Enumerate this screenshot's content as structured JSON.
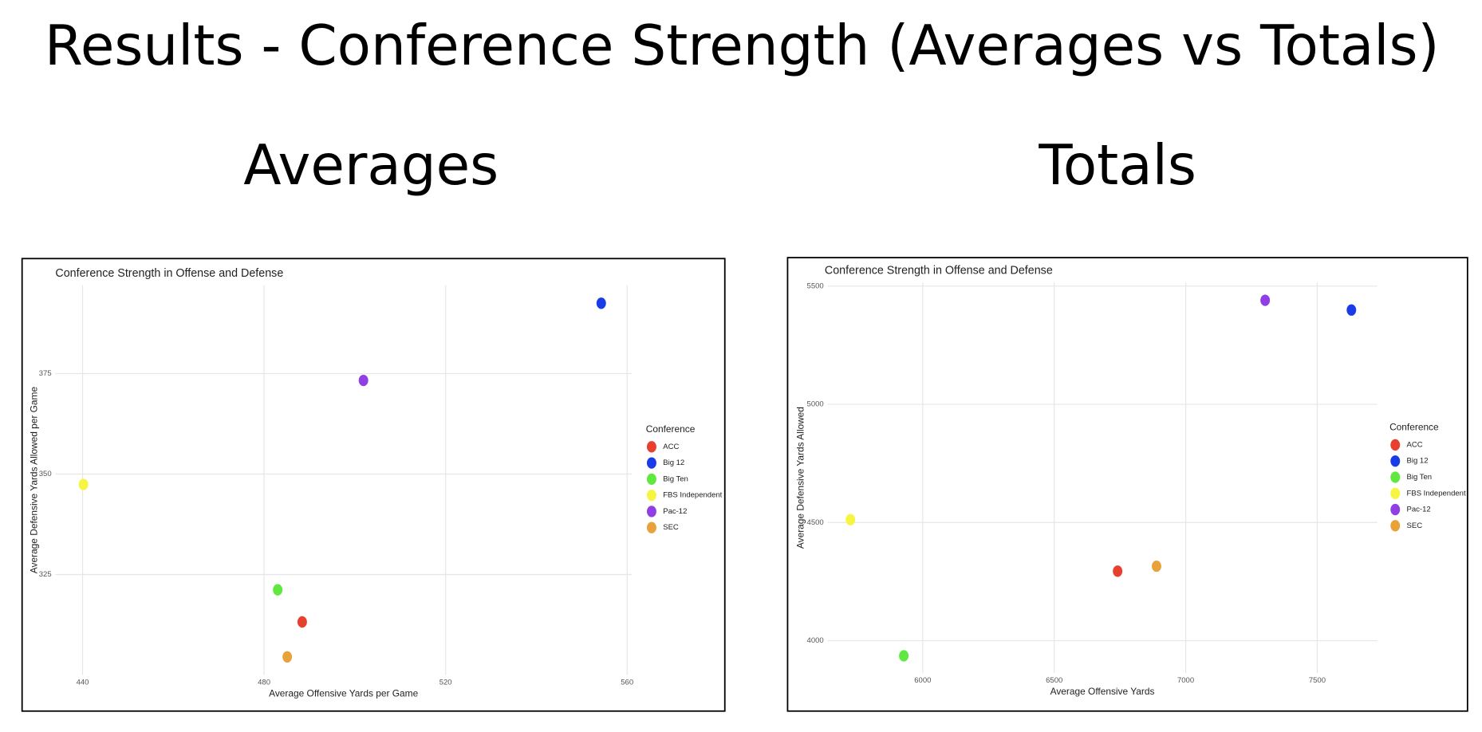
{
  "title": "Results - Conference Strength (Averages vs Totals)",
  "left_heading": "Averages",
  "right_heading": "Totals",
  "chart_data": [
    {
      "type": "scatter",
      "title": "Conference Strength in Offense and Defense",
      "x_label": "Average Offensive Yards per Game",
      "y_label": "Average Defensive Yards Allowed per Game",
      "legend_title": "Conference",
      "legend": "right",
      "grid": true,
      "xlim": [
        434,
        561
      ],
      "xticks": [
        440,
        480,
        520,
        560
      ],
      "ylim": [
        300,
        397
      ],
      "yticks": [
        325,
        350,
        375
      ],
      "series": [
        {
          "name": "ACC",
          "color": "#e8402e",
          "x": [
            488.4
          ],
          "values": [
            313.2
          ]
        },
        {
          "name": "Big 12",
          "color": "#1a3be8",
          "x": [
            554.3
          ],
          "values": [
            392.5
          ]
        },
        {
          "name": "Big Ten",
          "color": "#5fe840",
          "x": [
            483
          ],
          "values": [
            321.2
          ]
        },
        {
          "name": "FBS Independent",
          "color": "#f5f542",
          "x": [
            440.2
          ],
          "values": [
            347.4
          ]
        },
        {
          "name": "Pac-12",
          "color": "#8f3fe3",
          "x": [
            501.9
          ],
          "values": [
            373.3
          ]
        },
        {
          "name": "SEC",
          "color": "#e8a23a",
          "x": [
            485.1
          ],
          "values": [
            304.5
          ]
        }
      ]
    },
    {
      "type": "scatter",
      "title": "Conference Strength in Offense and Defense",
      "x_label": "Average Offensive Yards",
      "y_label": "Average Defensive Yards Allowed",
      "legend_title": "Conference",
      "legend": "right",
      "grid": true,
      "xlim": [
        5638,
        7728
      ],
      "xticks": [
        6000,
        6500,
        7000,
        7500
      ],
      "ylim": [
        3863,
        5516
      ],
      "yticks": [
        4000,
        4500,
        5000,
        5500
      ],
      "series": [
        {
          "name": "ACC",
          "color": "#e8402e",
          "x": [
            6741
          ],
          "values": [
            4294
          ]
        },
        {
          "name": "Big 12",
          "color": "#1a3be8",
          "x": [
            7630
          ],
          "values": [
            5399
          ]
        },
        {
          "name": "Big Ten",
          "color": "#5fe840",
          "x": [
            5928
          ],
          "values": [
            3936
          ]
        },
        {
          "name": "FBS Independent",
          "color": "#f5f542",
          "x": [
            5725
          ],
          "values": [
            4512
          ]
        },
        {
          "name": "Pac-12",
          "color": "#8f3fe3",
          "x": [
            7302
          ],
          "values": [
            5440
          ]
        },
        {
          "name": "SEC",
          "color": "#e8a23a",
          "x": [
            6889
          ],
          "values": [
            4315
          ]
        }
      ]
    }
  ]
}
